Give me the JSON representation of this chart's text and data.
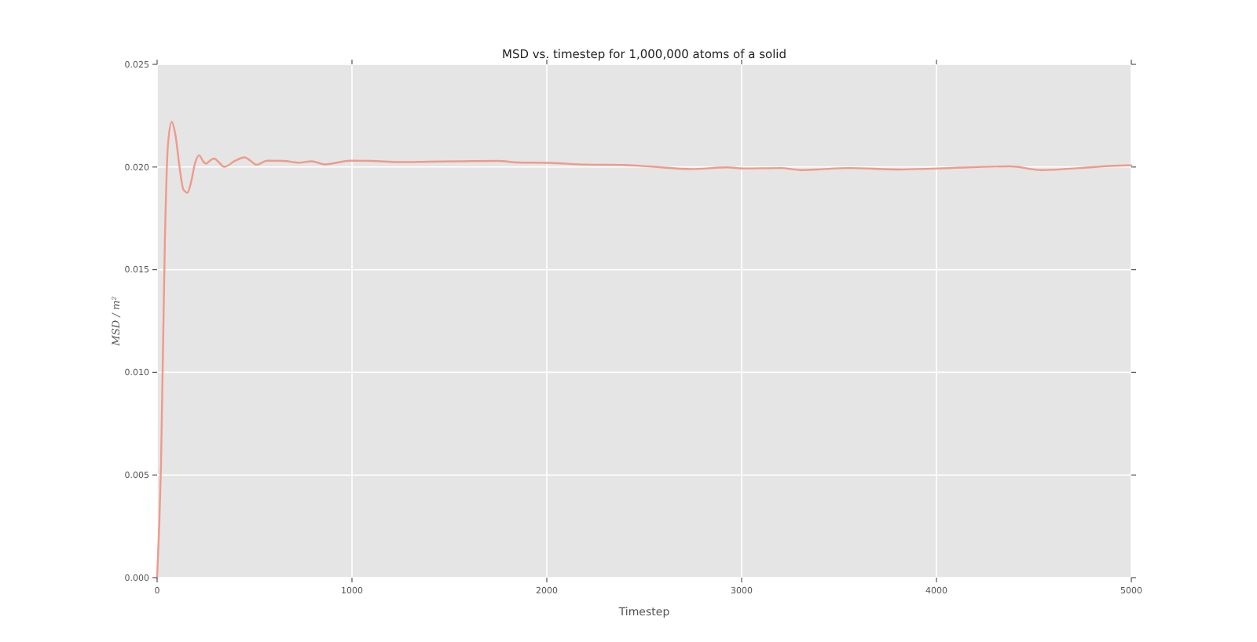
{
  "chart_data": {
    "type": "line",
    "title": "MSD vs. timestep for 1,000,000 atoms of a solid",
    "xlabel": "Timestep",
    "ylabel": "MSD / m²",
    "x": [
      0,
      20,
      40,
      55,
      75,
      95,
      115,
      135,
      156,
      175,
      195,
      215,
      235,
      250,
      270,
      293,
      320,
      344,
      400,
      449,
      480,
      511,
      565,
      650,
      726,
      793,
      860,
      995,
      1100,
      1237,
      1400,
      1559,
      1750,
      1850,
      2016,
      2200,
      2400,
      2524,
      2742,
      2927,
      3008,
      3202,
      3306,
      3387,
      3548,
      3815,
      4008,
      4379,
      4540,
      4734,
      4976,
      5000
    ],
    "series": [
      {
        "color": "#ef9a8a",
        "values": [
          0,
          0.0055,
          0.0165,
          0.021,
          0.0222,
          0.0215,
          0.02,
          0.0189,
          0.01875,
          0.0193,
          0.0202,
          0.02057,
          0.0203,
          0.02016,
          0.0203,
          0.02041,
          0.0202,
          0.02001,
          0.0203,
          0.02047,
          0.0203,
          0.02011,
          0.02031,
          0.0203,
          0.02021,
          0.02028,
          0.02013,
          0.02031,
          0.0203,
          0.02024,
          0.02026,
          0.02028,
          0.0203,
          0.02022,
          0.0202,
          0.02012,
          0.0201,
          0.02003,
          0.0199,
          0.01998,
          0.01993,
          0.01995,
          0.01985,
          0.01988,
          0.01995,
          0.01988,
          0.01993,
          0.02003,
          0.01985,
          0.01995,
          0.02008,
          0.02008
        ]
      }
    ],
    "xlim": [
      0,
      5000
    ],
    "xticks": [
      0,
      1000,
      2000,
      3000,
      4000,
      5000
    ],
    "ylim": [
      0,
      0.025
    ],
    "yticks": [
      {
        "value": 0,
        "label": "0.000"
      },
      {
        "value": 0.005,
        "label": "0.005"
      },
      {
        "value": 0.01,
        "label": "0.010"
      },
      {
        "value": 0.015,
        "label": "0.015"
      },
      {
        "value": 0.02,
        "label": "0.020"
      },
      {
        "value": 0.025,
        "label": "0.025"
      }
    ],
    "grid": true,
    "line_style": "solid",
    "marker": "none"
  }
}
